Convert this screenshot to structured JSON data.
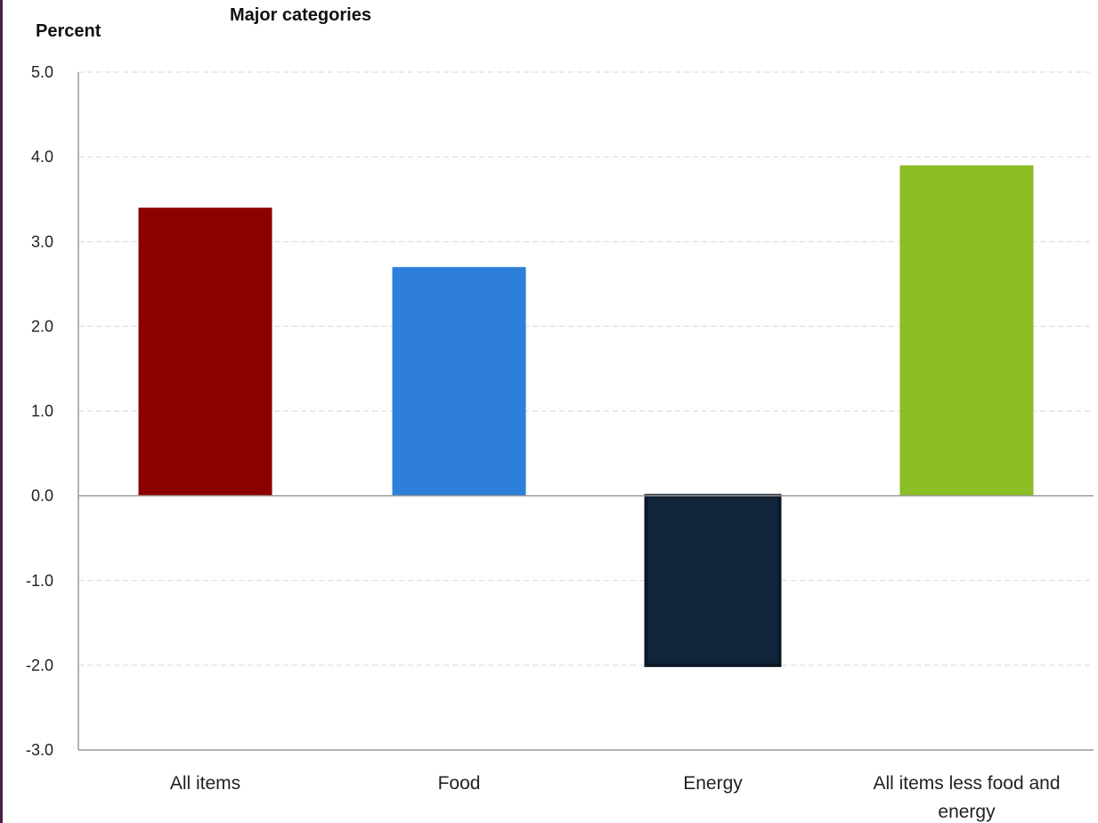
{
  "chart_data": {
    "type": "bar",
    "title": "Major categories",
    "ylabel": "Percent",
    "xlabel": "",
    "categories": [
      "All items",
      "Food",
      "Energy",
      "All items less food and energy"
    ],
    "category_lines": [
      [
        "All items"
      ],
      [
        "Food"
      ],
      [
        "Energy"
      ],
      [
        "All items less food and",
        "energy"
      ]
    ],
    "values": [
      3.4,
      2.7,
      -2.0,
      3.9
    ],
    "colors": [
      "#8b0000",
      "#2e7fd9",
      "#10243a",
      "#8bbd24"
    ],
    "ylim": [
      -3.0,
      5.0
    ],
    "yticks": [
      "5.0",
      "4.0",
      "3.0",
      "2.0",
      "1.0",
      "0.0",
      "-1.0",
      "-2.0",
      "-3.0"
    ],
    "ytick_values": [
      5,
      4,
      3,
      2,
      1,
      0,
      -1,
      -2,
      -3
    ],
    "grid": true,
    "legend": "none"
  },
  "colors": {
    "gridline": "#d9d9d9",
    "axis": "#9a9a9a",
    "frame_edge": "#4b1e45"
  }
}
